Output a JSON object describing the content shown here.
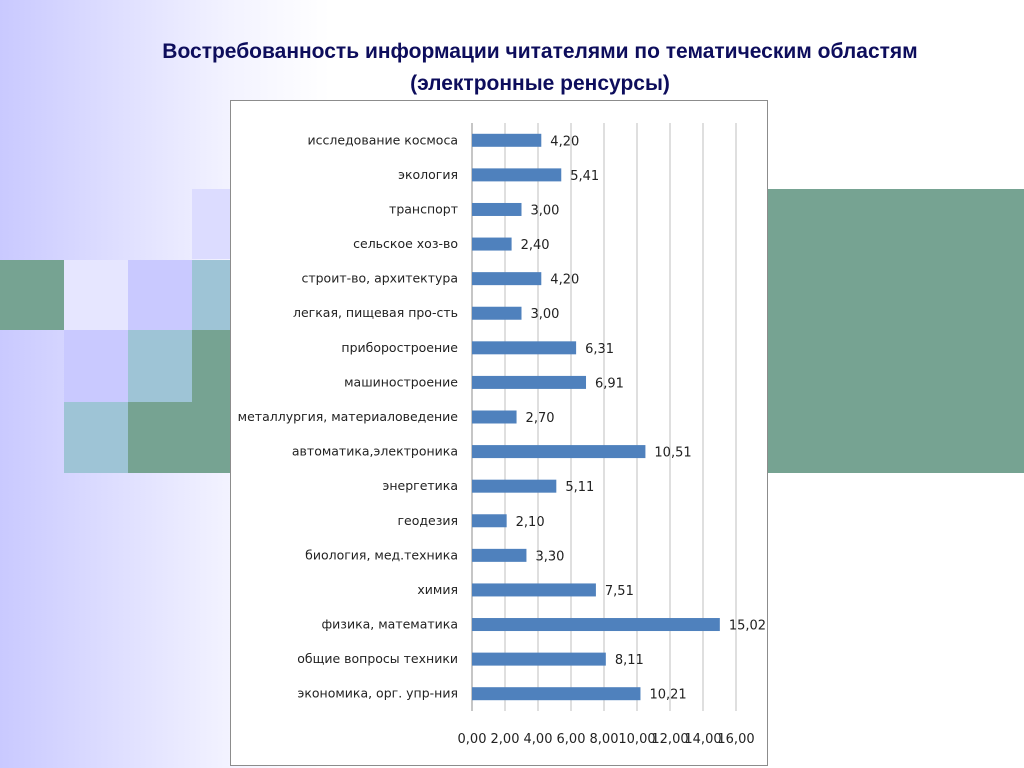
{
  "slide": {
    "title_line1": "Востребованность  информации читателями по тематическим областям",
    "title_line2": "(электронные ренсурсы)",
    "colors": {
      "accent_green": "#76a392",
      "accent_blue": "#9ec4d6",
      "accent_lavender": "#c9c9ff",
      "title": "#0d0d5c"
    }
  },
  "chart_data": {
    "type": "bar",
    "orientation": "horizontal",
    "title": "",
    "xlabel": "",
    "ylabel": "",
    "categories": [
      "исследование космоса",
      "экология",
      "транспорт",
      "сельское хоз-во",
      "строит-во, архитектура",
      "легкая, пищевая про-сть",
      "приборостроение",
      "машиностроение",
      "металлургия, материаловедение",
      "автоматика,электроника",
      "энергетика",
      "геодезия",
      "биология, мед.техника",
      "химия",
      "физика, математика",
      "общие вопросы техники",
      "экономика, орг. упр-ния"
    ],
    "values": [
      4.2,
      5.41,
      3.0,
      2.4,
      4.2,
      3.0,
      6.31,
      6.91,
      2.7,
      10.51,
      5.11,
      2.1,
      3.3,
      7.51,
      15.02,
      8.11,
      10.21
    ],
    "value_labels": [
      "4,20",
      "5,41",
      "3,00",
      "2,40",
      "4,20",
      "3,00",
      "6,31",
      "6,91",
      "2,70",
      "10,51",
      "5,11",
      "2,10",
      "3,30",
      "7,51",
      "15,02",
      "8,11",
      "10,21"
    ],
    "x_ticks": [
      0,
      2,
      4,
      6,
      8,
      10,
      12,
      14,
      16
    ],
    "x_tick_labels": [
      "0,00",
      "2,00",
      "4,00",
      "6,00",
      "8,00",
      "10,00",
      "12,00",
      "14,00",
      "16,00"
    ],
    "xlim": [
      0,
      16
    ],
    "grid": true,
    "legend": "none",
    "bar_color": "#4f81bd",
    "grid_color": "#bfbfbf"
  }
}
